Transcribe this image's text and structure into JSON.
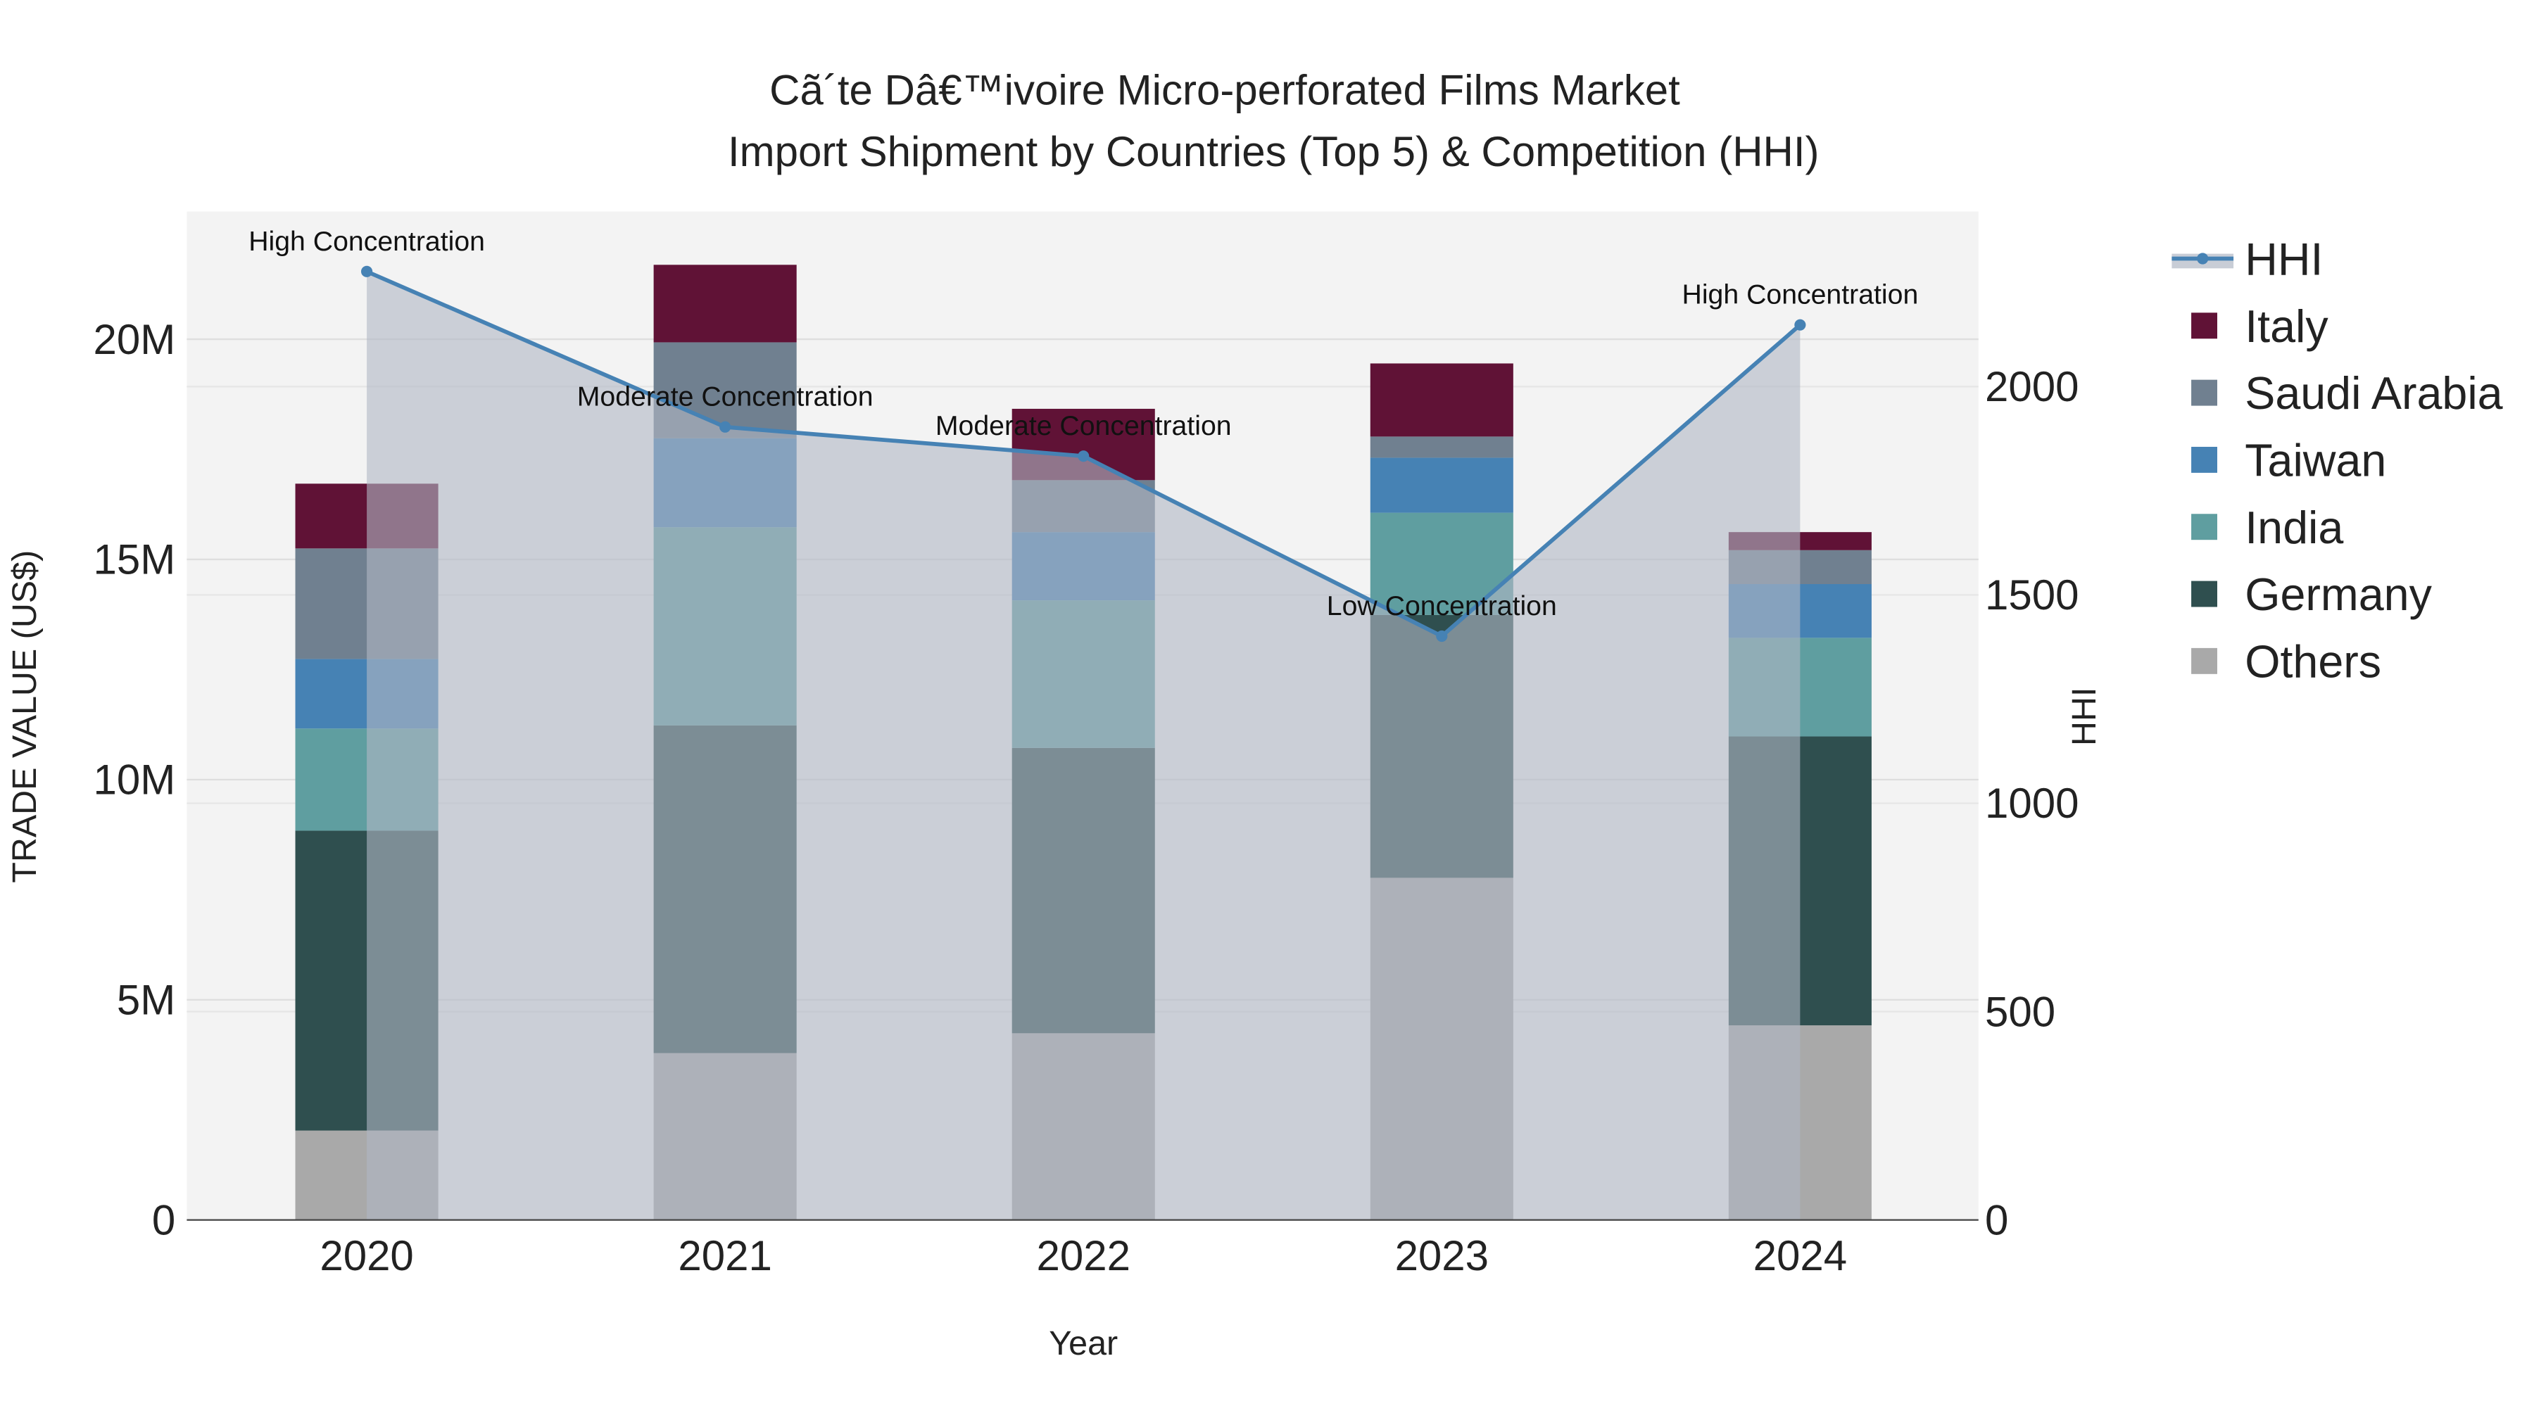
{
  "chart_data": {
    "type": "bar",
    "title_line1": "Cã´te Dâ€™ivoire Micro-perforated Films Market",
    "title_line2": "Import Shipment by Countries (Top 5) & Competition (HHI)",
    "xlabel": "Year",
    "ylabel": "TRADE VALUE (US$)",
    "y2label": "HHI",
    "categories": [
      "2020",
      "2021",
      "2022",
      "2023",
      "2024"
    ],
    "ylim": [
      0,
      22900000
    ],
    "y2lim": [
      0,
      2420
    ],
    "yticks": [
      {
        "v": 0,
        "label": "0"
      },
      {
        "v": 5000000,
        "label": "5M"
      },
      {
        "v": 10000000,
        "label": "10M"
      },
      {
        "v": 15000000,
        "label": "15M"
      },
      {
        "v": 20000000,
        "label": "20M"
      }
    ],
    "y2ticks": [
      {
        "v": 0,
        "label": "0"
      },
      {
        "v": 500,
        "label": "500"
      },
      {
        "v": 1000,
        "label": "1000"
      },
      {
        "v": 1500,
        "label": "1500"
      },
      {
        "v": 2000,
        "label": "2000"
      }
    ],
    "series": [
      {
        "name": "Others",
        "color": "#a9a9a9",
        "values": [
          2030000,
          3790000,
          4240000,
          7770000,
          4420000
        ]
      },
      {
        "name": "Germany",
        "color": "#2f4f4f",
        "values": [
          6810000,
          7440000,
          6480000,
          5970000,
          6560000
        ]
      },
      {
        "name": "India",
        "color": "#5f9ea0",
        "values": [
          2320000,
          4500000,
          3350000,
          2320000,
          2240000
        ]
      },
      {
        "name": "Taiwan",
        "color": "#4682b4",
        "values": [
          1580000,
          2020000,
          1550000,
          1250000,
          1220000
        ]
      },
      {
        "name": "Saudi Arabia",
        "color": "#708090",
        "values": [
          2510000,
          2180000,
          1180000,
          480000,
          770000
        ]
      },
      {
        "name": "Italy",
        "color": "#601236",
        "values": [
          1470000,
          1760000,
          1620000,
          1660000,
          410000
        ]
      }
    ],
    "hhi": {
      "name": "HHI",
      "color": "#4682b4",
      "values": [
        2276,
        1903,
        1833,
        1401,
        2148
      ]
    },
    "annotations": [
      "High Concentration",
      "Moderate Concentration",
      "Moderate Concentration",
      "Low Concentration",
      "High Concentration"
    ],
    "legend_order": [
      "HHI",
      "Italy",
      "Saudi Arabia",
      "Taiwan",
      "India",
      "Germany",
      "Others"
    ],
    "legend_position": "right",
    "grid": true
  }
}
